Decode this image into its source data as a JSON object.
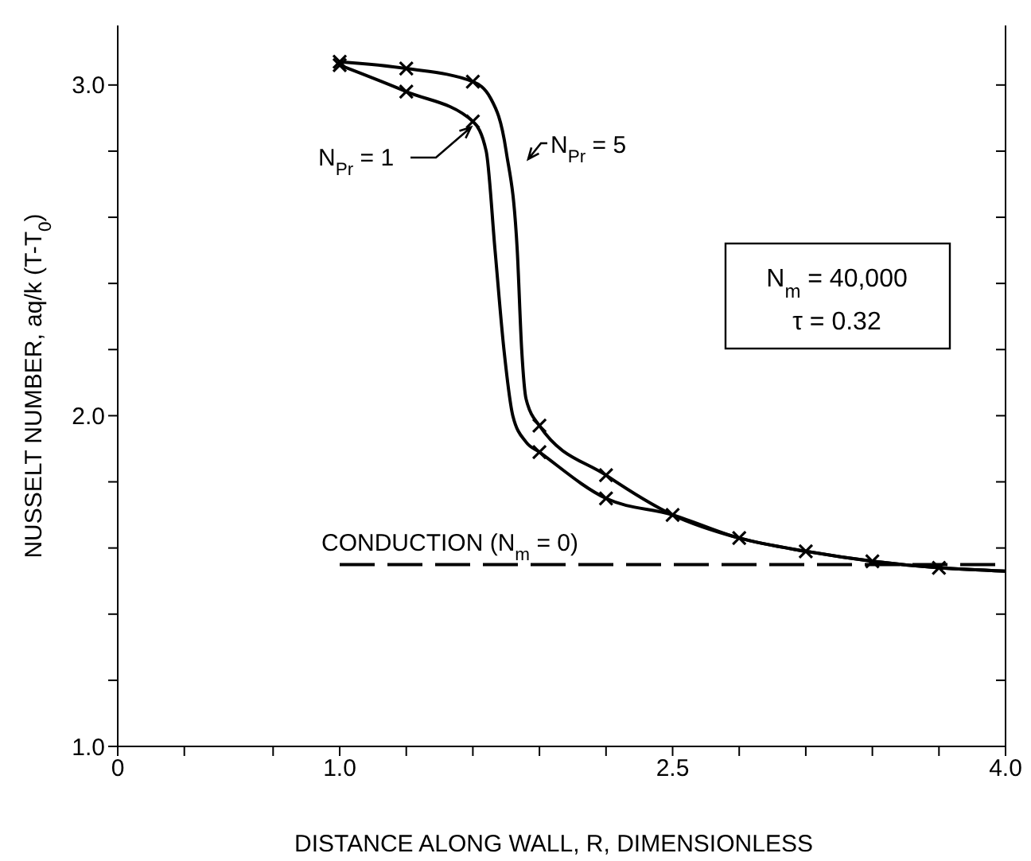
{
  "chart_data": {
    "type": "line",
    "xlabel": "DISTANCE ALONG WALL, R, DIMENSIONLESS",
    "ylabel": "NUSSELT NUMBER, aq/k (T-T$_{0}$)",
    "annotations": [
      "N$_{m}$ = 40,000",
      "τ = 0.32"
    ],
    "xlim": [
      0,
      4
    ],
    "ylim": [
      1.0,
      3.18
    ],
    "xticks": [
      0,
      {
        "value": 0.3,
        "label": null
      },
      {
        "value": 0.7,
        "label": null
      },
      {
        "value": 1,
        "label": "1.0"
      },
      {
        "value": 1.3,
        "label": null
      },
      {
        "value": 1.6,
        "label": null
      },
      {
        "value": 1.9,
        "label": null
      },
      {
        "value": 2.2,
        "label": null
      },
      2.5,
      {
        "value": 2.8,
        "label": null
      },
      {
        "value": 3.1,
        "label": null
      },
      {
        "value": 3.4,
        "label": null
      },
      {
        "value": 3.7,
        "label": null
      },
      {
        "value": 4,
        "label": "4.0"
      }
    ],
    "yticks": [
      {
        "value": 1,
        "label": "1.0"
      },
      {
        "value": 1.2,
        "label": null
      },
      {
        "value": 1.4,
        "label": null
      },
      {
        "value": 1.6,
        "label": null
      },
      {
        "value": 1.8,
        "label": null
      },
      {
        "value": 2,
        "label": "2.0"
      },
      {
        "value": 2.2,
        "label": null
      },
      {
        "value": 2.4,
        "label": null
      },
      {
        "value": 2.6,
        "label": null
      },
      {
        "value": 2.8,
        "label": null
      },
      {
        "value": 3,
        "label": "3.0"
      }
    ],
    "series": [
      {
        "name": "N$_{Pr}$ = 1",
        "color": "#000000",
        "x": [
          1.0,
          1.3,
          1.6,
          1.66,
          1.7,
          1.74,
          1.78,
          1.84,
          1.9,
          2.2,
          2.5,
          2.8,
          3.1,
          3.4,
          3.7,
          4.0
        ],
        "values": [
          3.06,
          2.98,
          2.89,
          2.8,
          2.5,
          2.2,
          2.0,
          1.92,
          1.89,
          1.75,
          1.7,
          1.63,
          1.59,
          1.56,
          1.54,
          1.53
        ]
      },
      {
        "name": "N$_{Pr}$ = 5",
        "color": "#000000",
        "x": [
          1.0,
          1.3,
          1.6,
          1.68,
          1.75,
          1.8,
          1.82,
          1.84,
          1.9,
          2.2,
          2.5,
          2.8,
          3.1,
          3.4,
          3.7,
          4.0
        ],
        "values": [
          3.07,
          3.05,
          3.01,
          2.96,
          2.8,
          2.5,
          2.2,
          2.05,
          1.97,
          1.82,
          1.7,
          1.63,
          1.59,
          1.56,
          1.54,
          1.53
        ]
      },
      {
        "type": "scatter",
        "marker": "cross",
        "color": "#000000",
        "x": [
          1.0,
          1.3,
          1.6,
          1.9,
          2.2,
          2.5,
          2.8,
          3.1,
          3.4,
          3.7
        ],
        "values": [
          3.06,
          2.98,
          2.89,
          1.89,
          1.75,
          1.7,
          1.63,
          1.59,
          1.56,
          1.54
        ]
      },
      {
        "type": "scatter",
        "marker": "cross",
        "color": "#000000",
        "x": [
          1.0,
          1.3,
          1.6,
          1.9,
          2.2
        ],
        "values": [
          3.07,
          3.05,
          3.01,
          1.97,
          1.82
        ]
      },
      {
        "name": "CONDUCTION (N$_{m}$ = 0)",
        "line_style": "dashed",
        "color": "#000000",
        "x": [
          1.0,
          4.0
        ],
        "values": [
          1.55,
          1.55
        ]
      }
    ]
  }
}
